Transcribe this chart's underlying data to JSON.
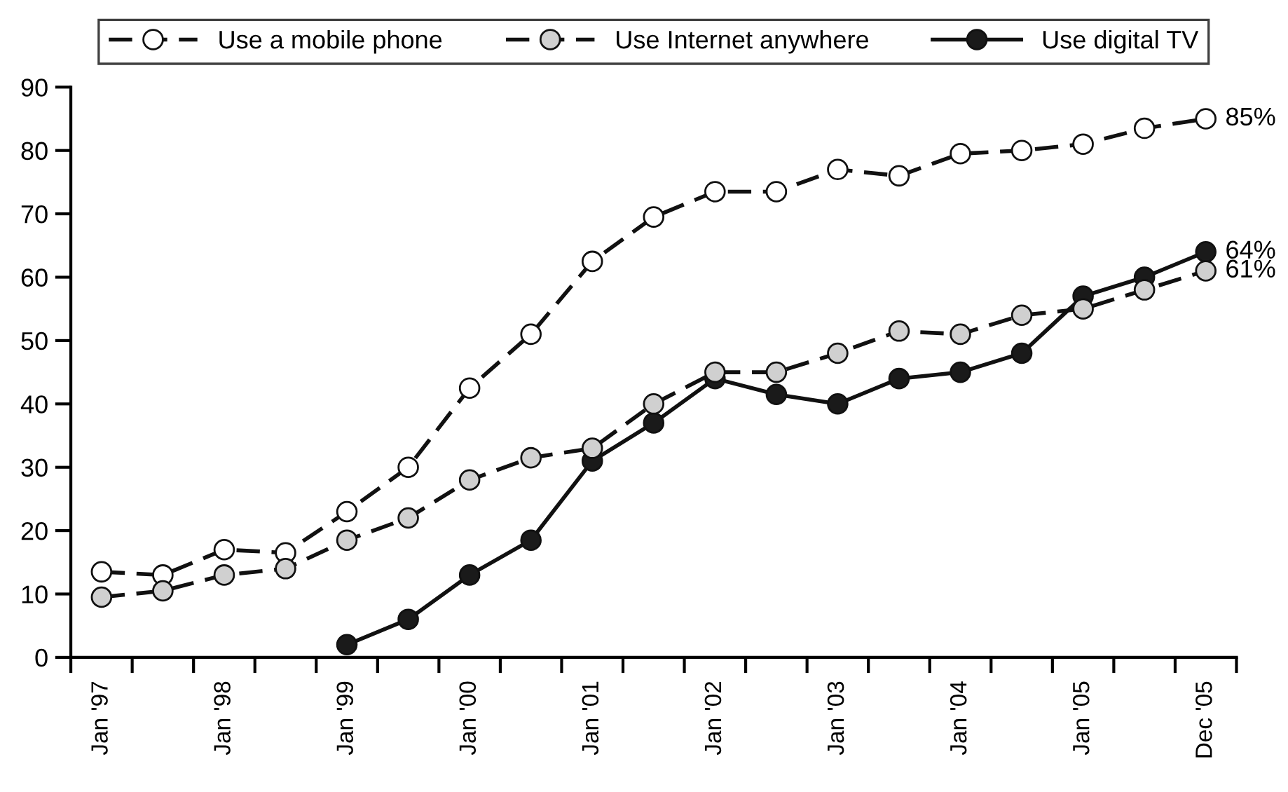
{
  "chart_data": {
    "type": "line",
    "categories": [
      "Jan '97",
      null,
      "Jan '98",
      null,
      "Jan '99",
      null,
      "Jan '00",
      null,
      "Jan '01",
      null,
      "Jan '02",
      null,
      "Jan '03",
      null,
      "Jan '04",
      null,
      "Jan '05",
      null,
      "Dec '05"
    ],
    "series": [
      {
        "name": "Use a mobile phone",
        "color": "#ffffff",
        "line_style": "dashed",
        "values": [
          13.5,
          13,
          17,
          16.5,
          23,
          30,
          42.5,
          51,
          62.5,
          69.5,
          73.5,
          73.5,
          77,
          76,
          79.5,
          80,
          81,
          83.5,
          85
        ],
        "value_labels": [
          null,
          null,
          null,
          null,
          null,
          null,
          null,
          null,
          null,
          null,
          null,
          null,
          null,
          null,
          null,
          null,
          null,
          null,
          "85%"
        ]
      },
      {
        "name": "Use Internet anywhere",
        "color": "#d0d0d0",
        "line_style": "dashed",
        "values": [
          9.5,
          10.5,
          13,
          14,
          18.5,
          22,
          28,
          31.5,
          33,
          40,
          45,
          45,
          48,
          51.5,
          51,
          54,
          55,
          58,
          61
        ],
        "value_labels": [
          null,
          null,
          null,
          null,
          null,
          null,
          null,
          null,
          null,
          null,
          null,
          null,
          null,
          null,
          null,
          null,
          null,
          null,
          "61%"
        ]
      },
      {
        "name": "Use digital TV",
        "color": "#1a1a1a",
        "line_style": "solid",
        "values": [
          null,
          null,
          null,
          null,
          2,
          6,
          13,
          18.5,
          31,
          37,
          44,
          41.5,
          40,
          44,
          45,
          48,
          57,
          60,
          64
        ],
        "value_labels": [
          null,
          null,
          null,
          null,
          null,
          null,
          null,
          null,
          null,
          null,
          null,
          null,
          null,
          null,
          null,
          null,
          null,
          null,
          "64%"
        ]
      }
    ],
    "ylim": [
      0,
      90
    ],
    "yticks": [
      0,
      10,
      20,
      30,
      40,
      50,
      60,
      70,
      80,
      90
    ],
    "marker": "circle",
    "grid": false,
    "legend": "top"
  }
}
